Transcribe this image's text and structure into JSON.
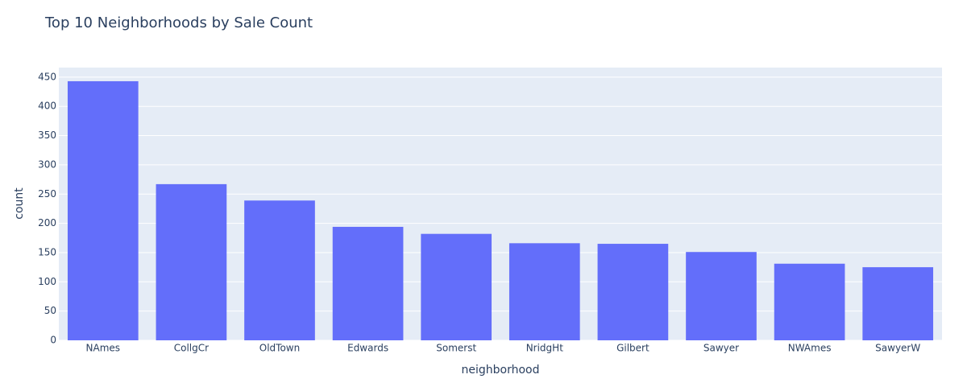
{
  "chart_data": {
    "type": "bar",
    "title": "Top 10 Neighborhoods by Sale Count",
    "x_label": "neighborhood",
    "y_label": "count",
    "categories": [
      "NAmes",
      "CollgCr",
      "OldTown",
      "Edwards",
      "Somerst",
      "NridgHt",
      "Gilbert",
      "Sawyer",
      "NWAmes",
      "SawyerW"
    ],
    "values": [
      443,
      267,
      239,
      194,
      182,
      166,
      165,
      151,
      131,
      125
    ],
    "color": "#636efa",
    "ylim": [
      0,
      466.3
    ],
    "yticks": [
      0,
      50,
      100,
      150,
      200,
      250,
      300,
      350,
      400,
      450
    ],
    "grid": true
  }
}
